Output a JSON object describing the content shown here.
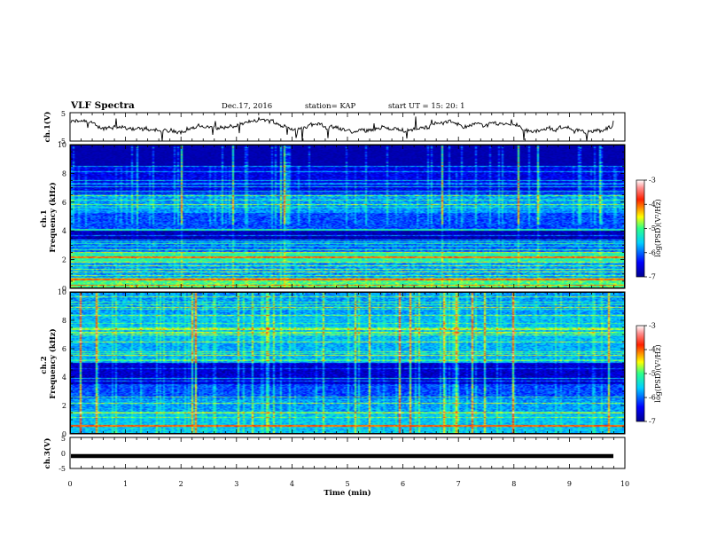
{
  "header": {
    "title": "VLF Spectra",
    "date": "Dec.17, 2016",
    "station": "station= KAP",
    "start": "start  UT  =   15: 20: 1"
  },
  "chart_data": [
    {
      "type": "line",
      "name": "ch1-waveform",
      "ylabel": "ch.1(V)",
      "ylim": [
        -5,
        5
      ],
      "yticks": [
        "5",
        "-5"
      ],
      "xlim": [
        0,
        10
      ],
      "trace": "noisy waveform centred near 0 V"
    },
    {
      "type": "heatmap",
      "name": "ch1-spectrogram",
      "ylabel": "ch.1\nFrequency  (kHz)",
      "ylim": [
        0,
        10
      ],
      "yticks": [
        "0",
        "2",
        "4",
        "6",
        "8",
        "10"
      ],
      "xlim": [
        0,
        10
      ],
      "colorbar": {
        "label": "log(PSD)(V²/Hz)",
        "range": [
          -7,
          -3
        ],
        "ticks": [
          "-3",
          "-4",
          "-5",
          "-6",
          "-7"
        ]
      }
    },
    {
      "type": "heatmap",
      "name": "ch2-spectrogram",
      "ylabel": "ch.2\nFrequency  (kHz)",
      "ylim": [
        0,
        10
      ],
      "yticks": [
        "0",
        "2",
        "4",
        "6",
        "8",
        "10"
      ],
      "xlim": [
        0,
        10
      ],
      "colorbar": {
        "label": "log(PSD)(V²/Hz)",
        "range": [
          -7,
          -3
        ],
        "ticks": [
          "-3",
          "-4",
          "-5",
          "-6",
          "-7"
        ]
      }
    },
    {
      "type": "line",
      "name": "ch3-waveform",
      "ylabel": "ch.3(V)",
      "ylim": [
        -5,
        5
      ],
      "yticks": [
        "5",
        "0",
        "-5"
      ],
      "xlim": [
        0,
        10
      ],
      "trace": "flat thick line near -1 V"
    }
  ],
  "xaxis": {
    "label": "Time  (min)",
    "ticks": [
      "0",
      "1",
      "2",
      "3",
      "4",
      "5",
      "6",
      "7",
      "8",
      "9",
      "10"
    ]
  }
}
